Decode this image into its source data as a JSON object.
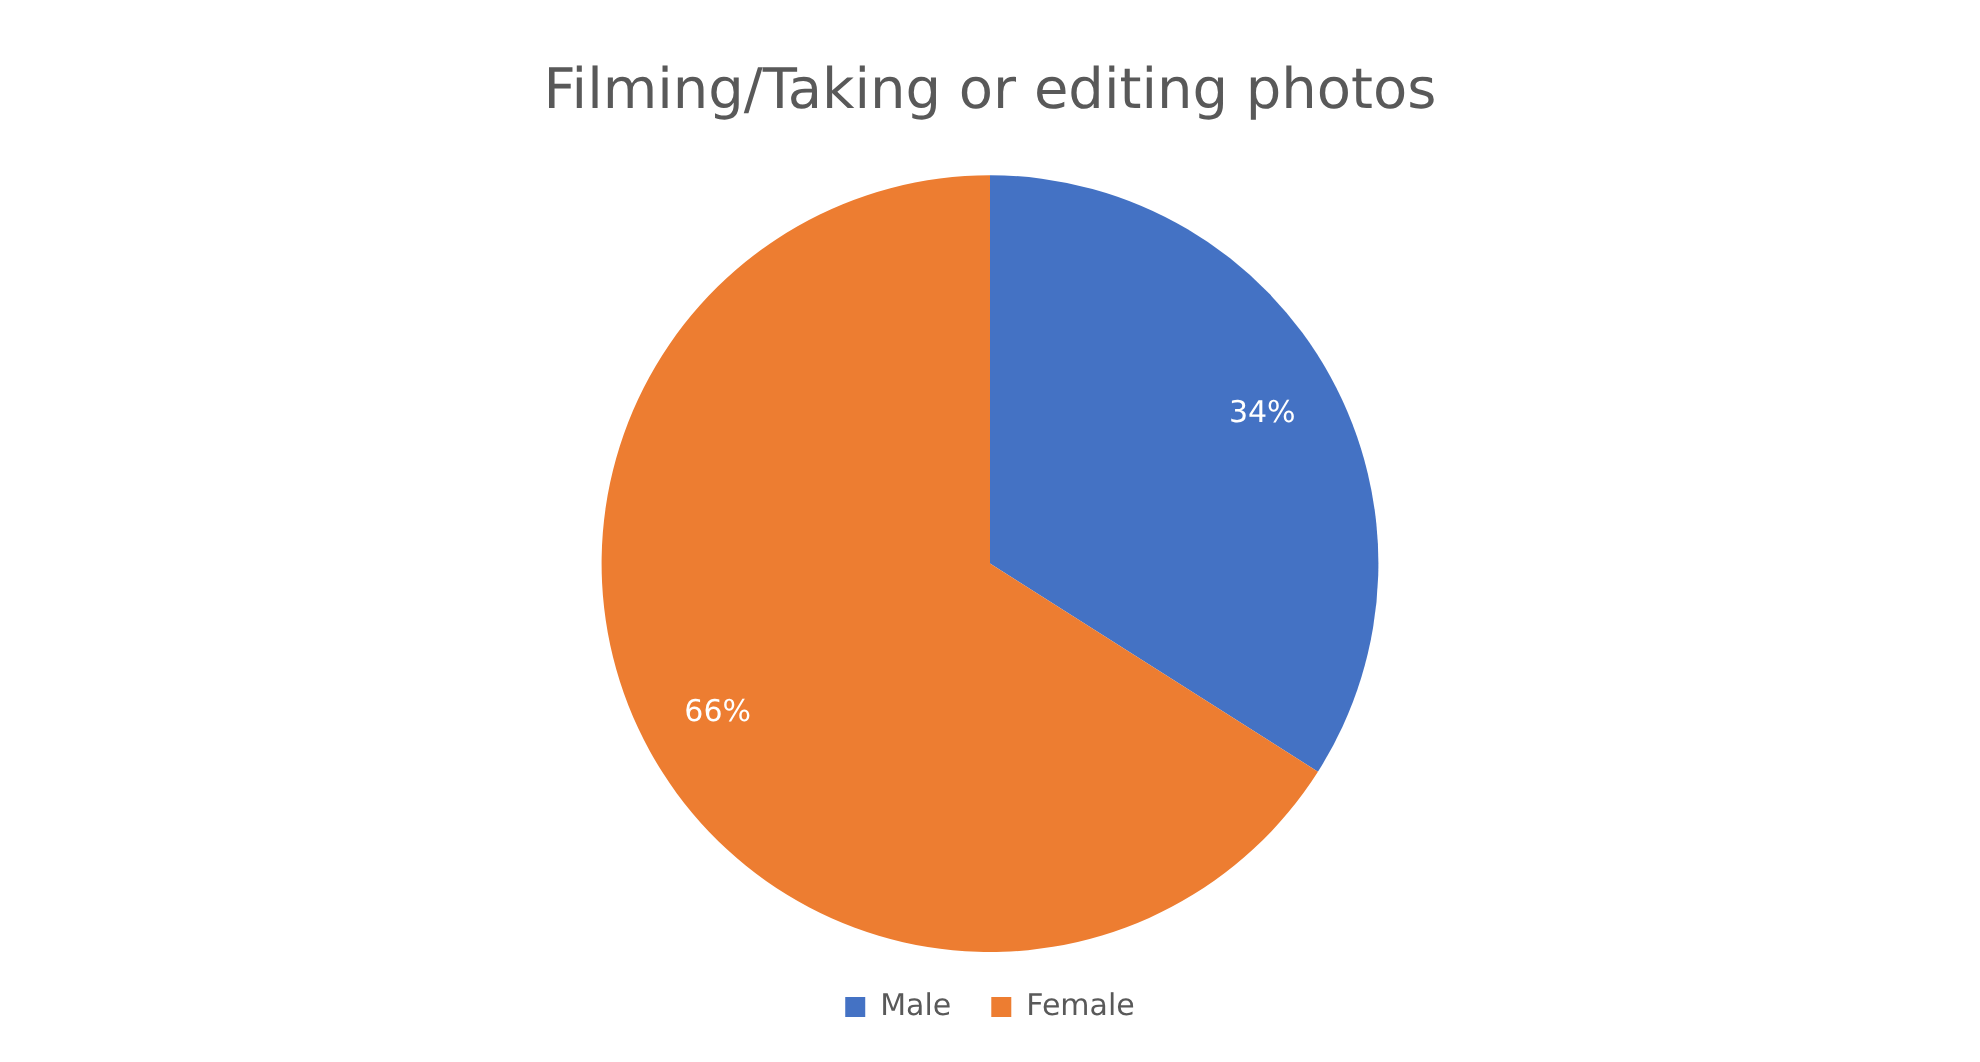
{
  "chart_data": {
    "type": "pie",
    "title": "Filming/Taking or editing photos",
    "categories": [
      "Male",
      "Female"
    ],
    "values": [
      34,
      66
    ],
    "colors": [
      "#4472c4",
      "#ed7d31"
    ],
    "value_labels": [
      "34%",
      "66%"
    ],
    "legend": "bottom"
  }
}
